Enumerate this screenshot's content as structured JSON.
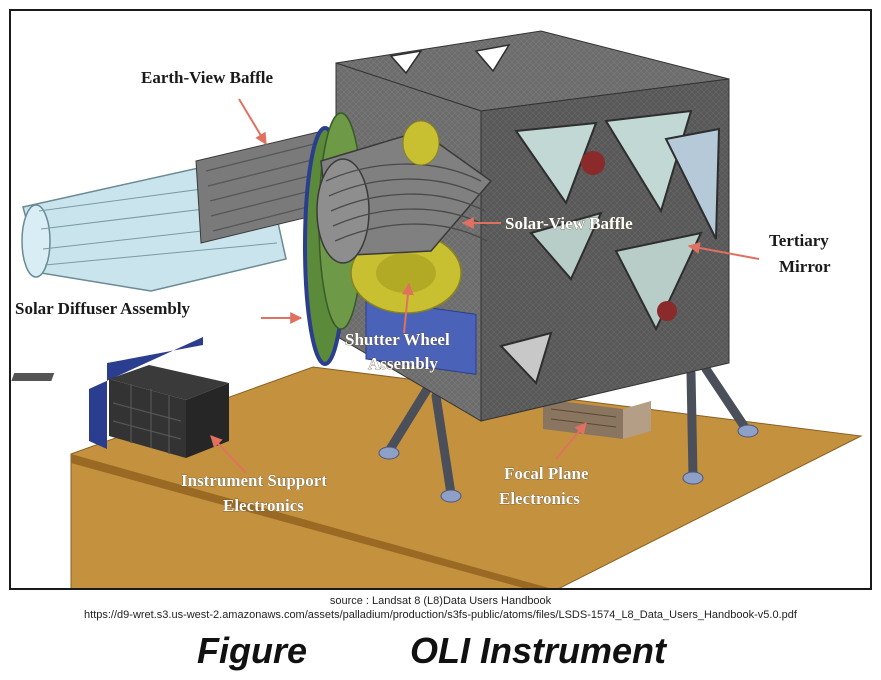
{
  "labels": {
    "earth_view_baffle": "Earth-View Baffle",
    "solar_view_baffle": "Solar-View Baffle",
    "tertiary_mirror_line1": "Tertiary",
    "tertiary_mirror_line2": "Mirror",
    "solar_diffuser_assembly": "Solar Diffuser Assembly",
    "shutter_wheel_line1": "Shutter Wheel",
    "shutter_wheel_line2": "Assembly",
    "instrument_support_line1": "Instrument Support",
    "instrument_support_line2": "Electronics",
    "focal_plane_line1": "Focal Plane",
    "focal_plane_line2": "Electronics"
  },
  "source": {
    "line1": "source : Landsat 8 (L8)Data Users Handbook",
    "line2": "https://d9-wret.s3.us-west-2.amazonaws.com/assets/palladium/production/s3fs-public/atoms/files/LSDS-1574_L8_Data_Users_Handbook-v5.0.pdf"
  },
  "caption": {
    "figure": "Figure",
    "title": "OLI Instrument"
  },
  "colors": {
    "platform": "#c4913f",
    "housing": "#6e6e6e",
    "arrow": "#e07060",
    "baffle": "#c9e4ec",
    "diffuser": "#5a8a3a",
    "shutter": "#c8c030",
    "electronics_panel": "#2a3d8f"
  }
}
